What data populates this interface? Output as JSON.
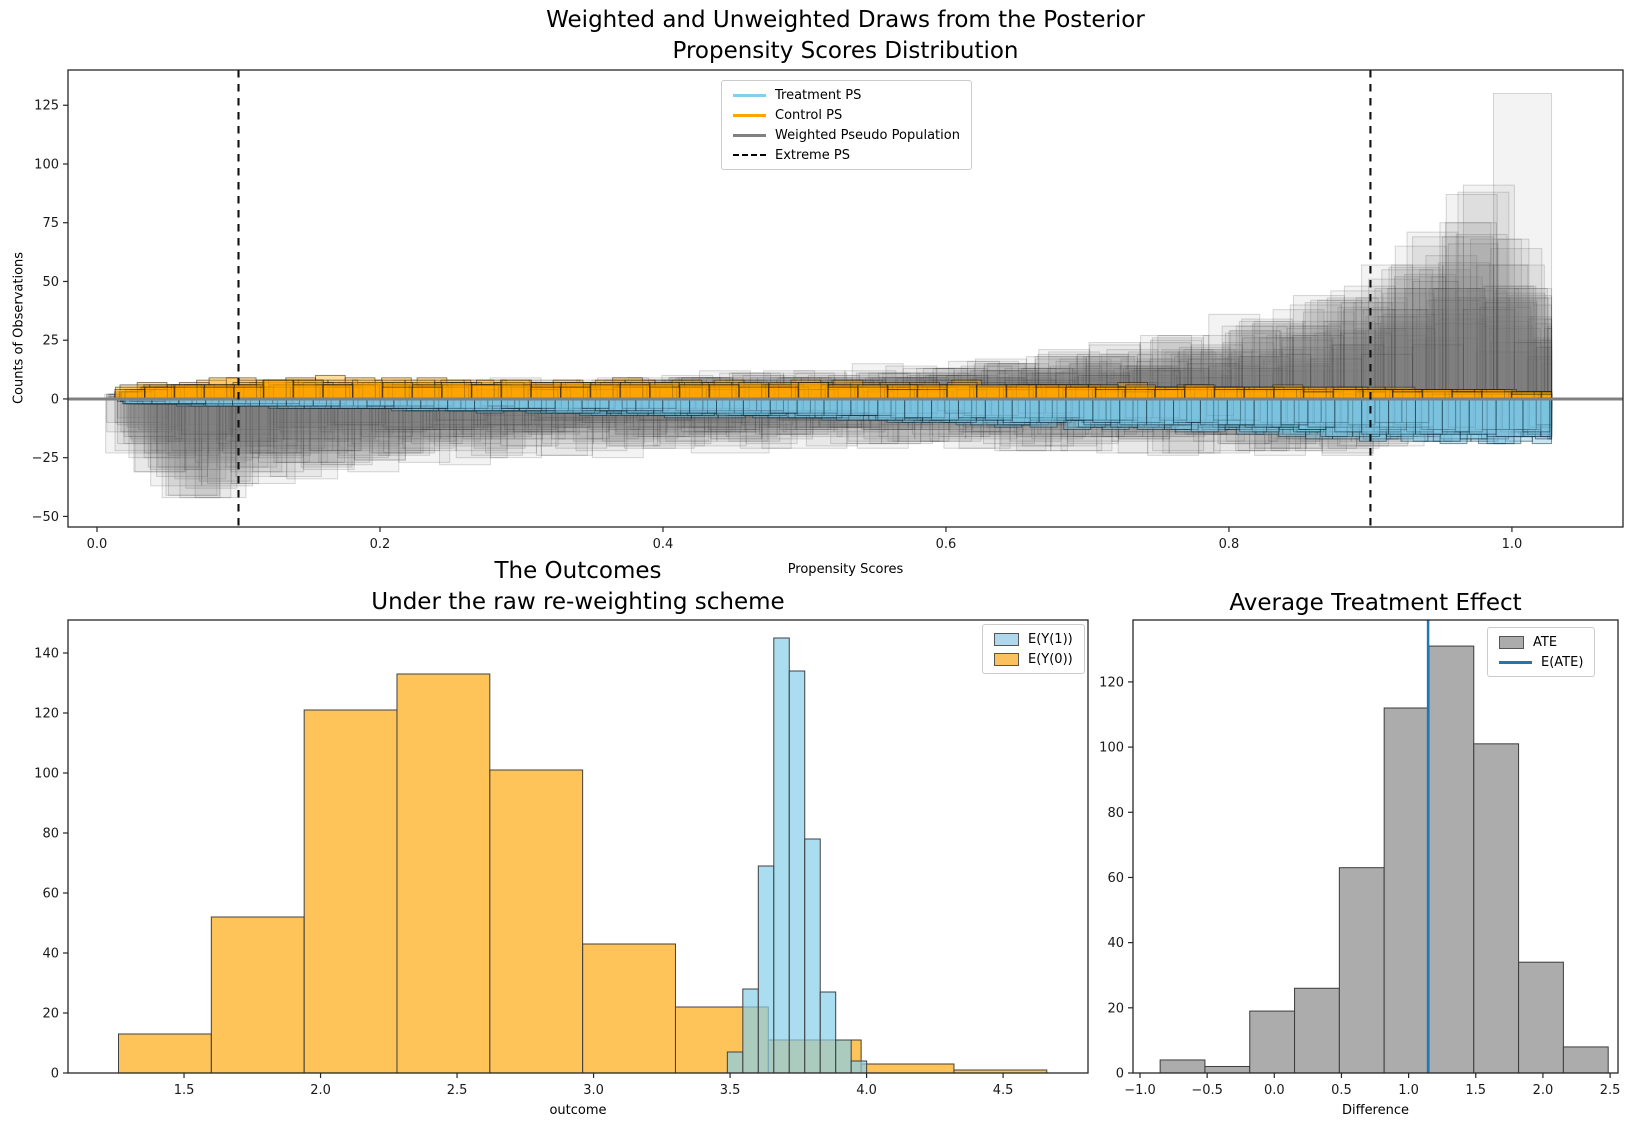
{
  "chart_data": [
    {
      "id": "posterior",
      "type": "histogram-draws",
      "title_lines": [
        "Weighted and Unweighted Draws from the Posterior",
        "Propensity Scores Distribution"
      ],
      "xlabel": "Propensity Scores",
      "ylabel": "Counts of Observations",
      "xlim": [
        -0.0205,
        1.0785
      ],
      "ylim": [
        -54.5,
        140
      ],
      "grid": false,
      "legend_position": "upper center",
      "xticks": {
        "values": [
          0.0,
          0.2,
          0.4,
          0.6,
          0.8,
          1.0
        ],
        "labels": [
          "0.0",
          "0.2",
          "0.4",
          "0.6",
          "0.8",
          "1.0"
        ]
      },
      "yticks": {
        "values": [
          -50,
          -25,
          0,
          25,
          50,
          75,
          100,
          125
        ],
        "labels": [
          "−50",
          "−25",
          "0",
          "25",
          "50",
          "75",
          "100",
          "125"
        ]
      },
      "extreme_ps": [
        0.1,
        0.9
      ],
      "zero_line": {
        "y": 0,
        "color": "#808080"
      },
      "legend": [
        {
          "label": "Treatment PS",
          "swatch": "line",
          "color": "#87CEEB"
        },
        {
          "label": "Control PS",
          "swatch": "line",
          "color": "#FFA500"
        },
        {
          "label": "Weighted Pseudo Population",
          "swatch": "line",
          "color": "#808080"
        },
        {
          "label": "Extreme PS",
          "swatch": "dashed-line",
          "color": "#000000"
        }
      ],
      "draws": {
        "seed": 11,
        "series": [
          {
            "name": "weighted-pseudo-population-above",
            "side": 1,
            "n_draws": 26,
            "bin_width": 0.036,
            "x_range": [
              0.023,
              1.028
            ],
            "variability": 0.45,
            "fill": "rgba(120,120,120,0.09)",
            "edge": "rgba(40,40,40,0.18)",
            "envelope": [
              [
                0.023,
                2
              ],
              [
                0.1,
                3
              ],
              [
                0.2,
                4
              ],
              [
                0.3,
                5
              ],
              [
                0.4,
                6
              ],
              [
                0.5,
                7.5
              ],
              [
                0.6,
                9.5
              ],
              [
                0.7,
                13
              ],
              [
                0.78,
                17
              ],
              [
                0.85,
                24
              ],
              [
                0.9,
                32
              ],
              [
                0.94,
                44
              ],
              [
                0.97,
                54
              ],
              [
                1.0,
                46
              ],
              [
                1.028,
                28
              ]
            ]
          },
          {
            "name": "weighted-pseudo-population-below",
            "side": -1,
            "n_draws": 26,
            "bin_width": 0.036,
            "x_range": [
              0.023,
              1.028
            ],
            "variability": 0.42,
            "fill": "rgba(120,120,120,0.09)",
            "edge": "rgba(40,40,40,0.18)",
            "envelope": [
              [
                0.023,
                16
              ],
              [
                0.06,
                27
              ],
              [
                0.1,
                25
              ],
              [
                0.15,
                21
              ],
              [
                0.2,
                18
              ],
              [
                0.3,
                15
              ],
              [
                0.4,
                13.5
              ],
              [
                0.5,
                12.5
              ],
              [
                0.6,
                12.5
              ],
              [
                0.7,
                13.5
              ],
              [
                0.8,
                14.5
              ],
              [
                0.88,
                15
              ],
              [
                0.95,
                10
              ],
              [
                1.0,
                6
              ],
              [
                1.028,
                4
              ]
            ]
          },
          {
            "name": "control-ps",
            "side": 1,
            "n_draws": 18,
            "bin_width": 0.021,
            "x_range": [
              0.023,
              1.028
            ],
            "variability": 0.3,
            "fill": "rgba(255,165,0,0.38)",
            "edge": "rgba(20,20,20,0.5)",
            "envelope": [
              [
                0.023,
                4
              ],
              [
                0.08,
                6
              ],
              [
                0.15,
                6.5
              ],
              [
                0.3,
                6
              ],
              [
                0.5,
                5.5
              ],
              [
                0.7,
                5
              ],
              [
                0.8,
                4.5
              ],
              [
                0.9,
                3.5
              ],
              [
                1.028,
                2.5
              ]
            ]
          },
          {
            "name": "treatment-ps",
            "side": -1,
            "n_draws": 18,
            "bin_width": 0.019,
            "x_range": [
              0.023,
              1.028
            ],
            "variability": 0.22,
            "fill": "rgba(125,195,225,0.42)",
            "edge": "rgba(10,35,50,0.5)",
            "envelope": [
              [
                0.023,
                1.5
              ],
              [
                0.1,
                2.5
              ],
              [
                0.2,
                3.5
              ],
              [
                0.3,
                4.5
              ],
              [
                0.4,
                5.5
              ],
              [
                0.5,
                6.5
              ],
              [
                0.6,
                8
              ],
              [
                0.7,
                9.5
              ],
              [
                0.8,
                11
              ],
              [
                0.88,
                13
              ],
              [
                0.95,
                14.5
              ],
              [
                1.028,
                14.5
              ]
            ]
          }
        ],
        "outlier_bars": [
          {
            "series": 0,
            "x0": 0.987,
            "x1": 1.028,
            "h": 130
          },
          {
            "series": 0,
            "x0": 0.99,
            "x1": 1.012,
            "h": 68
          },
          {
            "series": 0,
            "x0": 0.955,
            "x1": 0.99,
            "h": 66
          },
          {
            "series": 0,
            "x0": 0.93,
            "x1": 0.962,
            "h": 50
          },
          {
            "series": 0,
            "x0": 0.895,
            "x1": 0.94,
            "h": 38
          },
          {
            "series": 1,
            "x0": 0.046,
            "x1": 0.087,
            "h": 42
          },
          {
            "series": 1,
            "x0": 0.095,
            "x1": 0.14,
            "h": 36
          },
          {
            "series": 1,
            "x0": 0.125,
            "x1": 0.175,
            "h": 27
          },
          {
            "series": 1,
            "x0": 0.42,
            "x1": 0.475,
            "h": 23
          },
          {
            "series": 1,
            "x0": 0.47,
            "x1": 0.53,
            "h": 21
          }
        ]
      }
    },
    {
      "id": "outcomes",
      "type": "histogram",
      "title_lines": [
        "The Outcomes",
        "Under the raw re-weighting scheme"
      ],
      "xlabel": "outcome",
      "ylabel": "",
      "xlim": [
        1.075,
        4.811
      ],
      "ylim": [
        0,
        151
      ],
      "grid": false,
      "legend_position": "upper right",
      "xticks": {
        "values": [
          1.5,
          2.0,
          2.5,
          3.0,
          3.5,
          4.0,
          4.5
        ],
        "labels": [
          "1.5",
          "2.0",
          "2.5",
          "3.0",
          "3.5",
          "4.0",
          "4.5"
        ]
      },
      "yticks": {
        "values": [
          0,
          20,
          40,
          60,
          80,
          100,
          120,
          140
        ],
        "labels": [
          "0",
          "20",
          "40",
          "60",
          "80",
          "100",
          "120",
          "140"
        ]
      },
      "legend": [
        {
          "label": "E(Y(1))",
          "swatch": "patch",
          "color": "#AFD8ED"
        },
        {
          "label": "E(Y(0))",
          "swatch": "patch",
          "color": "#FBC15E"
        }
      ],
      "series": [
        {
          "name": "E(Y(1))",
          "z": 2,
          "bin_start": 3.49,
          "bin_width": 0.0567,
          "values": [
            7,
            28,
            69,
            145,
            134,
            78,
            27,
            11,
            4
          ],
          "fill": "rgba(135,206,235,0.7)",
          "edge": "#404040"
        },
        {
          "name": "E(Y(0))",
          "z": 1,
          "bin_start": 1.26,
          "bin_width": 0.34,
          "values": [
            13,
            52,
            121,
            133,
            101,
            43,
            22,
            11,
            3,
            1
          ],
          "fill": "rgba(255,165,0,0.65)",
          "edge": "#404040"
        }
      ]
    },
    {
      "id": "ate",
      "type": "histogram",
      "title_lines": [
        "Average Treatment Effect"
      ],
      "xlabel": "Difference",
      "ylabel": "",
      "xlim": [
        -1.052,
        2.559
      ],
      "ylim": [
        0,
        139
      ],
      "grid": false,
      "legend_position": "upper right",
      "xticks": {
        "values": [
          -1.0,
          -0.5,
          0.0,
          0.5,
          1.0,
          1.5,
          2.0,
          2.5
        ],
        "labels": [
          "−1.0",
          "−0.5",
          "0.0",
          "0.5",
          "1.0",
          "1.5",
          "2.0",
          "2.5"
        ]
      },
      "yticks": {
        "values": [
          0,
          20,
          40,
          60,
          80,
          100,
          120
        ],
        "labels": [
          "0",
          "20",
          "40",
          "60",
          "80",
          "100",
          "120"
        ]
      },
      "legend": [
        {
          "label": "ATE",
          "swatch": "patch",
          "color": "#ACACAC"
        },
        {
          "label": "E(ATE)",
          "swatch": "line",
          "color": "#1f77b4"
        }
      ],
      "series": [
        {
          "name": "ATE",
          "z": 1,
          "bin_start": -0.85,
          "bin_width": 0.3336,
          "values": [
            4,
            2,
            19,
            26,
            63,
            112,
            131,
            101,
            34,
            8
          ],
          "fill": "#ACACAC",
          "edge": "#3c3c3c"
        }
      ],
      "e_ate_x": 1.145,
      "e_ate_color": "#1f77b4"
    }
  ]
}
